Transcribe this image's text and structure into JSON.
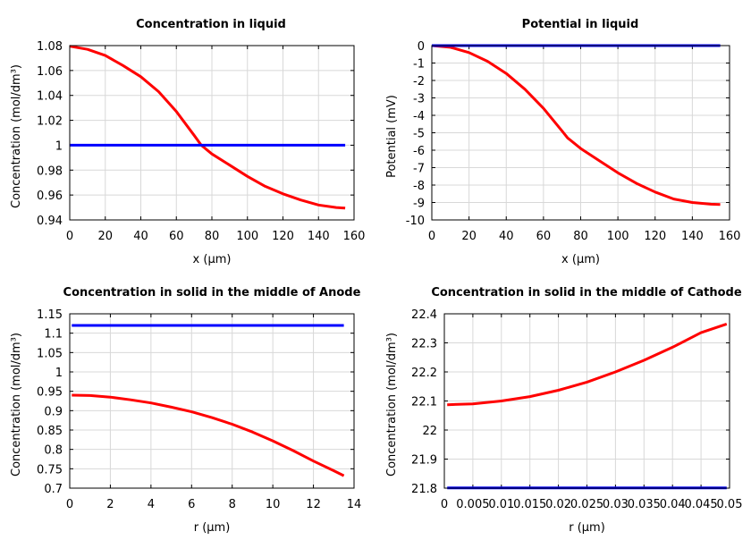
{
  "chart_data": [
    {
      "type": "line",
      "title": "Concentration in liquid",
      "xlabel": "x (µm)",
      "ylabel": "Concentration (mol/dm³)",
      "xlim": [
        0,
        160
      ],
      "ylim": [
        0.94,
        1.08
      ],
      "xticks": [
        "0",
        "20",
        "40",
        "60",
        "80",
        "100",
        "120",
        "140",
        "160"
      ],
      "yticks": [
        "0.94",
        "0.96",
        "0.98",
        "1",
        "1.02",
        "1.04",
        "1.06",
        "1.08"
      ],
      "grid": true,
      "series": [
        {
          "color": "#ff0000",
          "x": [
            0,
            10,
            20,
            30,
            40,
            50,
            60,
            70,
            74,
            80,
            90,
            100,
            110,
            120,
            130,
            140,
            150,
            155
          ],
          "y": [
            1.0795,
            1.077,
            1.072,
            1.064,
            1.055,
            1.043,
            1.027,
            1.008,
            1.0,
            0.993,
            0.984,
            0.975,
            0.967,
            0.961,
            0.956,
            0.952,
            0.95,
            0.9495
          ]
        },
        {
          "color": "#0000ff",
          "x": [
            0,
            155
          ],
          "y": [
            1.0,
            1.0
          ]
        }
      ]
    },
    {
      "type": "line",
      "title": "Potential in liquid",
      "xlabel": "x (µm)",
      "ylabel": "Potential (mV)",
      "xlim": [
        0,
        160
      ],
      "ylim": [
        -10,
        0
      ],
      "xticks": [
        "0",
        "20",
        "40",
        "60",
        "80",
        "100",
        "120",
        "140",
        "160"
      ],
      "yticks": [
        "-10",
        "-9",
        "-8",
        "-7",
        "-6",
        "-5",
        "-4",
        "-3",
        "-2",
        "-1",
        "0"
      ],
      "grid": true,
      "series": [
        {
          "color": "#ff0000",
          "x": [
            0,
            10,
            20,
            30,
            40,
            50,
            60,
            70,
            73,
            80,
            90,
            100,
            110,
            120,
            130,
            140,
            150,
            155
          ],
          "y": [
            0,
            -0.1,
            -0.4,
            -0.9,
            -1.6,
            -2.5,
            -3.6,
            -4.9,
            -5.3,
            -5.9,
            -6.6,
            -7.3,
            -7.9,
            -8.4,
            -8.8,
            -9.0,
            -9.1,
            -9.12
          ]
        },
        {
          "color": "#0000ff",
          "x": [
            0,
            155
          ],
          "y": [
            0,
            0
          ]
        }
      ]
    },
    {
      "type": "line",
      "title": "Concentration in solid in the middle of Anode",
      "xlabel": "r (µm)",
      "ylabel": "Concentration (mol/dm³)",
      "xlim": [
        0,
        14
      ],
      "ylim": [
        0.7,
        1.15
      ],
      "xticks": [
        "0",
        "2",
        "4",
        "6",
        "8",
        "10",
        "12",
        "14"
      ],
      "yticks": [
        "0.7",
        "0.75",
        "0.8",
        "0.85",
        "0.9",
        "0.95",
        "1",
        "1.05",
        "1.1",
        "1.15"
      ],
      "grid": true,
      "series": [
        {
          "color": "#ff0000",
          "x": [
            0.1,
            1,
            2,
            3,
            4,
            5,
            6,
            7,
            8,
            9,
            10,
            11,
            12,
            13,
            13.5
          ],
          "y": [
            0.94,
            0.939,
            0.935,
            0.928,
            0.92,
            0.909,
            0.897,
            0.882,
            0.865,
            0.845,
            0.822,
            0.797,
            0.77,
            0.745,
            0.732
          ]
        },
        {
          "color": "#0000ff",
          "x": [
            0.1,
            13.5
          ],
          "y": [
            1.12,
            1.12
          ]
        }
      ]
    },
    {
      "type": "line",
      "title": "Concentration in solid in the middle of Cathode",
      "xlabel": "r (µm)",
      "ylabel": "Concentration (mol/dm³)",
      "xlim": [
        0,
        0.05
      ],
      "ylim": [
        21.8,
        22.4
      ],
      "xticks": [
        "0",
        "0.005",
        "0.01",
        "0.015",
        "0.02",
        "0.025",
        "0.03",
        "0.035",
        "0.04",
        "0.045",
        "0.05"
      ],
      "yticks": [
        "21.8",
        "21.9",
        "22",
        "22.1",
        "22.2",
        "22.3",
        "22.4"
      ],
      "grid": true,
      "series": [
        {
          "color": "#ff0000",
          "x": [
            0.0005,
            0.005,
            0.01,
            0.015,
            0.02,
            0.025,
            0.03,
            0.035,
            0.04,
            0.045,
            0.0495
          ],
          "y": [
            22.087,
            22.09,
            22.1,
            22.115,
            22.137,
            22.165,
            22.2,
            22.24,
            22.285,
            22.335,
            22.365
          ]
        },
        {
          "color": "#0000ff",
          "x": [
            0.0005,
            0.0495
          ],
          "y": [
            21.801,
            21.801
          ]
        }
      ]
    }
  ]
}
